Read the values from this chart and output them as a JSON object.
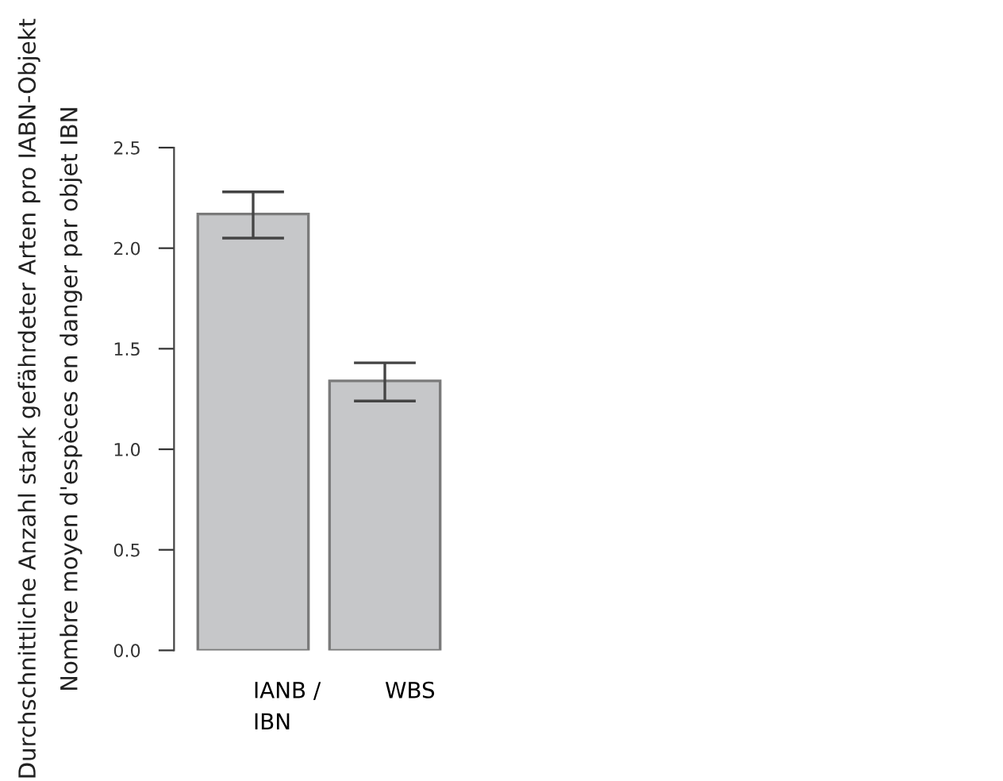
{
  "chart_data": {
    "type": "bar",
    "ylabel": "Durchschnittliche Anzahl stark gefährdeter Arten pro IABN-Objekt\nNombre moyen d'espèces en danger par objet IBN",
    "categories": [
      "IANB /\nIBN",
      "WBS"
    ],
    "values": [
      2.17,
      1.34
    ],
    "errors": [
      [
        2.05,
        2.28
      ],
      [
        1.24,
        1.43
      ]
    ],
    "color": "#c6c7c9",
    "ylim": [
      0,
      2.5
    ],
    "yticks": [
      {
        "value": 0,
        "label": "0.0"
      },
      {
        "value": 0.5,
        "label": "0.5"
      },
      {
        "value": 1,
        "label": "1.0"
      },
      {
        "value": 1.5,
        "label": "1.5"
      },
      {
        "value": 2,
        "label": "2.0"
      },
      {
        "value": 2.5,
        "label": "2.5"
      }
    ],
    "grid": false
  }
}
